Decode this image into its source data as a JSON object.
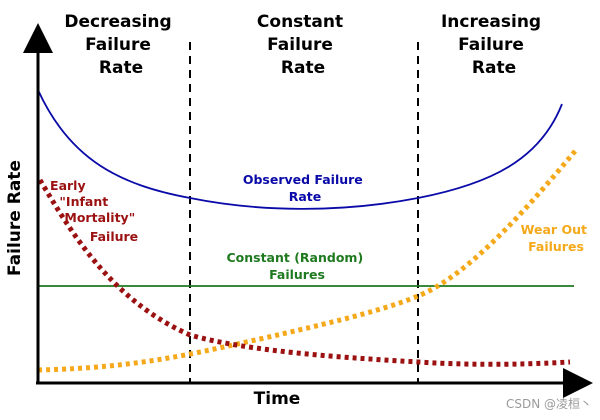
{
  "colors": {
    "observed": "#0a0aa8",
    "infant": "#9b1111",
    "constant": "#1f7a1f",
    "wearout": "#f5a91a",
    "axis": "#000000"
  },
  "regions": [
    {
      "lines": [
        "Decreasing",
        "Failure",
        "Rate"
      ]
    },
    {
      "lines": [
        "Constant",
        "Failure",
        "Rate"
      ]
    },
    {
      "lines": [
        "Increasing",
        "Failure",
        "Rate"
      ]
    }
  ],
  "axes": {
    "x_label": "Time",
    "y_label": "Failure Rate"
  },
  "curves": {
    "observed": {
      "label_lines": [
        "Observed Failure",
        "Rate"
      ]
    },
    "infant": {
      "label_lines": [
        "Early",
        "\"Infant",
        "Mortality\"",
        "Failure"
      ]
    },
    "constant": {
      "label_lines": [
        "Constant (Random)",
        "Failures"
      ]
    },
    "wearout": {
      "label_lines": [
        "Wear Out",
        "Failures"
      ]
    }
  },
  "watermark": "CSDN @凌桓丶"
}
